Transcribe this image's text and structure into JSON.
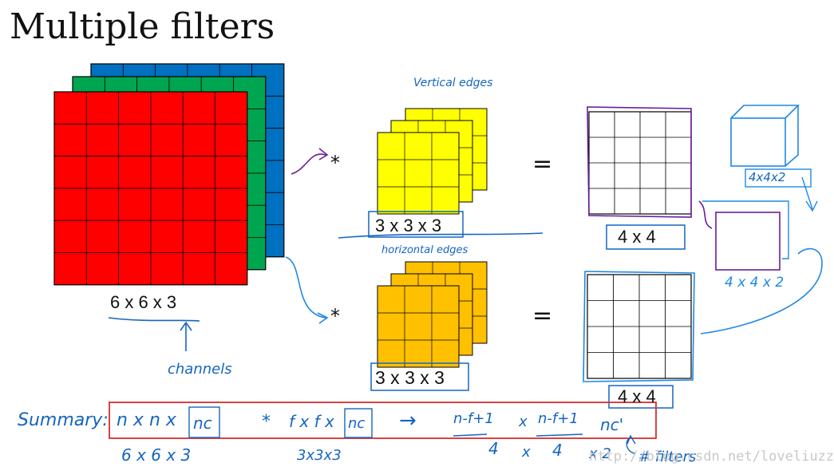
{
  "title": "Multiple filters",
  "input_label": "6 x 6 x 3",
  "filter_label": "3 x 3 x 3",
  "output_label": "4 x 4",
  "conv_symbol": "*",
  "equals_symbol": "=",
  "annotations": {
    "vertical_edges": "Vertical edges",
    "horizontal_edges": "horizontal edges",
    "channels": "channels",
    "stacked_shape": "4x4x2",
    "result_shape": "4 x 4 x 2",
    "summary_label": "Summary:",
    "summary_n": "n x n x",
    "summary_nc": "nc",
    "summary_times": "*",
    "summary_f": "f x f x",
    "summary_arrow": "→",
    "summary_out1": "n-f+1",
    "summary_out_times": "x",
    "summary_out2": "n-f+1",
    "summary_ncp": "nc'",
    "summary_num1": "6 x 6 x 3",
    "summary_num2": "3x3x3",
    "summary_num3": "4",
    "summary_num4": "x",
    "summary_num5": "4",
    "summary_num6": "x 2",
    "filters_note": "# filters"
  },
  "watermark": "http://blog.csdn.net/loveliuzz",
  "colors": {
    "input_red": "#ff0000",
    "input_green": "#00a550",
    "input_blue": "#0070c0",
    "filter_yellow": "#ffff00",
    "filter_orange": "#ffc000",
    "ink_blue": "#1565c0",
    "ink_purple": "#6a1b9a",
    "summary_box": "#d32f2f"
  }
}
